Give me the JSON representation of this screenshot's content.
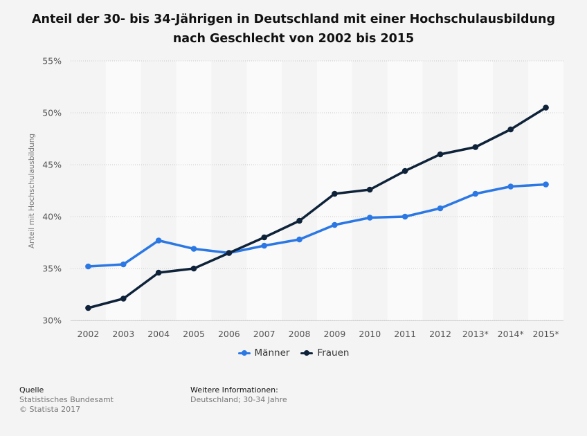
{
  "header": {
    "title_line1": "Anteil der 30- bis 34-Jährigen in Deutschland mit einer Hochschulausbildung",
    "title_line2": "nach Geschlecht von 2002 bis 2015"
  },
  "footer": {
    "source_label": "Quelle",
    "source_name": "Statistisches Bundesamt",
    "copyright": "© Statista 2017",
    "info_label": "Weitere Informationen:",
    "info_text": "Deutschland; 30-34 Jahre"
  },
  "chart_data": {
    "type": "line",
    "title": "Anteil der 30- bis 34-Jährigen in Deutschland mit einer Hochschulausbildung nach Geschlecht von 2002 bis 2015",
    "xlabel": "",
    "ylabel": "Anteil mit Hochschulausbildung",
    "categories": [
      "2002",
      "2003",
      "2004",
      "2005",
      "2006",
      "2007",
      "2008",
      "2009",
      "2010",
      "2011",
      "2012",
      "2013*",
      "2014*",
      "2015*"
    ],
    "ylim": [
      30,
      55
    ],
    "yticks": [
      30,
      35,
      40,
      45,
      50,
      55
    ],
    "ytick_labels": [
      "30%",
      "35%",
      "40%",
      "45%",
      "50%",
      "55%"
    ],
    "grid": true,
    "legend_position": "bottom-center",
    "series": [
      {
        "name": "Männer",
        "color": "#2b78e4",
        "values": [
          35.2,
          35.4,
          37.7,
          36.9,
          36.5,
          37.2,
          37.8,
          39.2,
          39.9,
          40.0,
          40.8,
          42.2,
          42.9,
          43.1
        ]
      },
      {
        "name": "Frauen",
        "color": "#0e2239",
        "values": [
          31.2,
          32.1,
          34.6,
          35.0,
          36.5,
          38.0,
          39.6,
          42.2,
          42.6,
          44.4,
          46.0,
          46.7,
          48.4,
          50.5
        ]
      }
    ]
  }
}
